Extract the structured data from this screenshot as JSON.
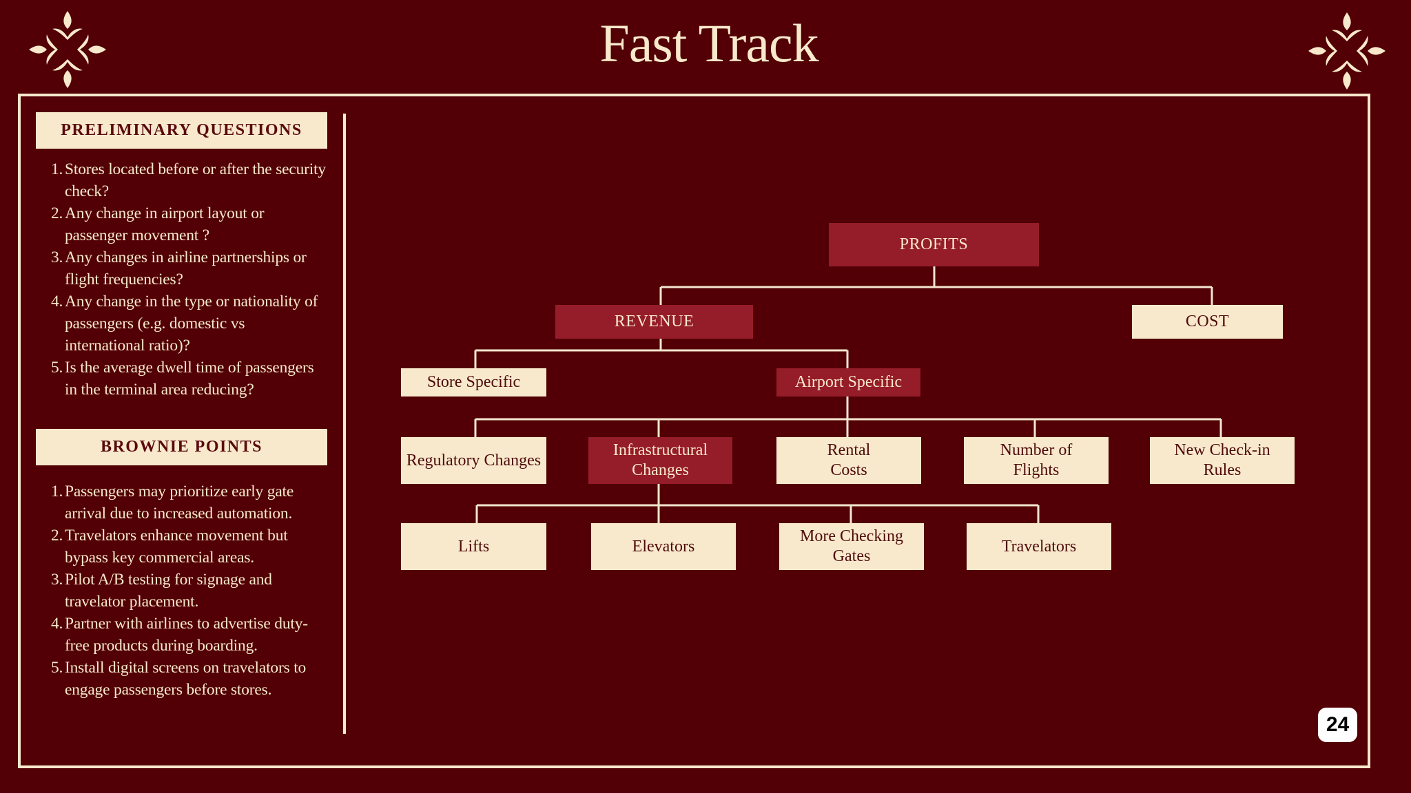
{
  "title": "Fast Track",
  "colors": {
    "background": "#520005",
    "cream": "#f8e9cc",
    "accent_red": "#951c29",
    "dark_text": "#4f0a0c"
  },
  "icons": {
    "ornament_left": "fleur-ornament",
    "ornament_right": "fleur-ornament"
  },
  "preliminary": {
    "heading": "PRELIMINARY QUESTIONS",
    "items": [
      {
        "num": "1.",
        "text": "Stores located before or after the security check?"
      },
      {
        "num": "2.",
        "text": "Any change in airport layout or passenger movement ?"
      },
      {
        "num": "3.",
        "text": "Any changes in airline partnerships or flight frequencies?"
      },
      {
        "num": "4.",
        "text": "Any change in the type or nationality of passengers (e.g. domestic vs international ratio)?"
      },
      {
        "num": "5.",
        "text": "Is the average dwell time of passengers in the terminal area reducing?"
      }
    ]
  },
  "brownie": {
    "heading": "BROWNIE POINTS",
    "items": [
      {
        "num": "1.",
        "text": "Passengers may prioritize early gate arrival due to increased automation."
      },
      {
        "num": "2.",
        "text": "Travelators enhance movement but bypass key commercial areas."
      },
      {
        "num": "3.",
        "text": "Pilot A/B testing for signage and travelator placement."
      },
      {
        "num": "4.",
        "text": "Partner with airlines to advertise duty-free products during boarding."
      },
      {
        "num": "5.",
        "text": "Install digital screens on travelators to engage passengers before stores."
      }
    ]
  },
  "tree": {
    "profits": "PROFITS",
    "revenue": "REVENUE",
    "cost": "COST",
    "store_specific": "Store Specific",
    "airport_specific": "Airport Specific",
    "regulatory": "Regulatory Changes",
    "infrastructural": "Infrastructural Changes",
    "rental": "Rental Costs",
    "flights": "Number of Flights",
    "checkin": "New Check-in Rules",
    "lifts": "Lifts",
    "elevators": "Elevators",
    "gates": "More Checking Gates",
    "travelators": "Travelators"
  },
  "page_number": "24"
}
